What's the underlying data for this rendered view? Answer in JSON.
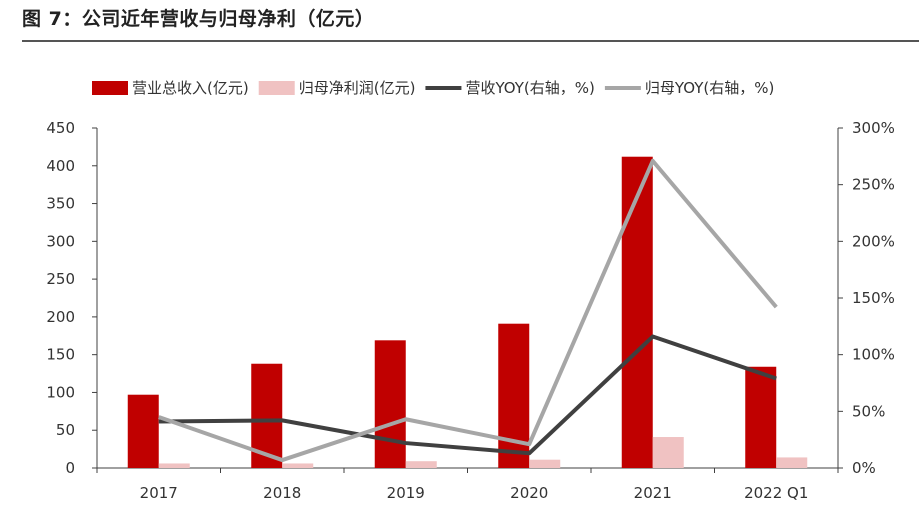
{
  "figure_title": "图 7：公司近年营收与归母净利（亿元）",
  "chart_data": {
    "type": "bar",
    "categories": [
      "2017",
      "2018",
      "2019",
      "2020",
      "2021",
      "2022 Q1"
    ],
    "series": [
      {
        "name": "营业总收入(亿元)",
        "kind": "bar",
        "axis": "left",
        "color": "#c00000",
        "values": [
          97,
          138,
          169,
          191,
          412,
          134
        ]
      },
      {
        "name": "归母净利润(亿元)",
        "kind": "bar",
        "axis": "left",
        "color": "#f0c2c2",
        "values": [
          6,
          6,
          9,
          11,
          41,
          14
        ]
      },
      {
        "name": "营收YOY(右轴，%)",
        "kind": "line",
        "axis": "right",
        "color": "#404040",
        "values": [
          41,
          42,
          22,
          13,
          116,
          79
        ]
      },
      {
        "name": "归母YOY(右轴，%)",
        "kind": "line",
        "axis": "right",
        "color": "#a6a6a6",
        "values": [
          45,
          7,
          43,
          21,
          271,
          142
        ]
      }
    ],
    "y_left": {
      "min": 0,
      "max": 450,
      "ticks": [
        0,
        50,
        100,
        150,
        200,
        250,
        300,
        350,
        400,
        450
      ]
    },
    "y_right": {
      "min": 0,
      "max": 300,
      "ticks": [
        "0%",
        "50%",
        "100%",
        "150%",
        "200%",
        "250%",
        "300%"
      ]
    },
    "legend_position": "top",
    "grid": false
  }
}
